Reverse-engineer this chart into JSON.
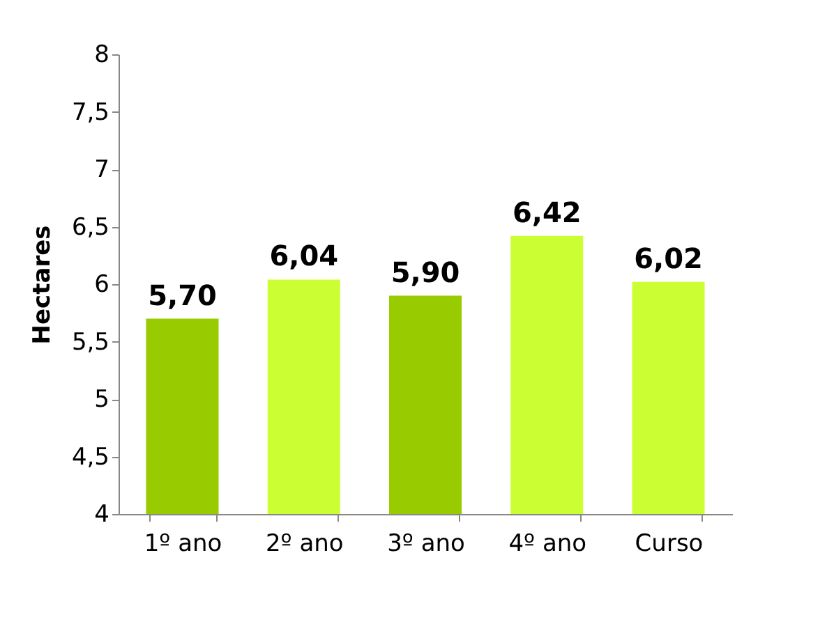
{
  "chart_data": {
    "type": "bar",
    "ylabel": "Hectares",
    "categories": [
      "1º ano",
      "2º ano",
      "3º ano",
      "4º ano",
      "Curso"
    ],
    "values": [
      5.7,
      6.04,
      5.9,
      6.42,
      6.02
    ],
    "colors": [
      "#99cc00",
      "#ccff33",
      "#99cc00",
      "#ccff33",
      "#ccff33"
    ],
    "value_labels": [
      "5,70",
      "6,04",
      "5,90",
      "6,42",
      "6,02"
    ],
    "ylim": [
      4,
      8
    ],
    "yticks": [
      4,
      {
        "value": 4.5,
        "label": "4,5"
      },
      5,
      {
        "value": 5.5,
        "label": "5,5"
      },
      6,
      {
        "value": 6.5,
        "label": "6,5"
      },
      7,
      {
        "value": 7.5,
        "label": "7,5"
      },
      8
    ],
    "grid": false
  }
}
